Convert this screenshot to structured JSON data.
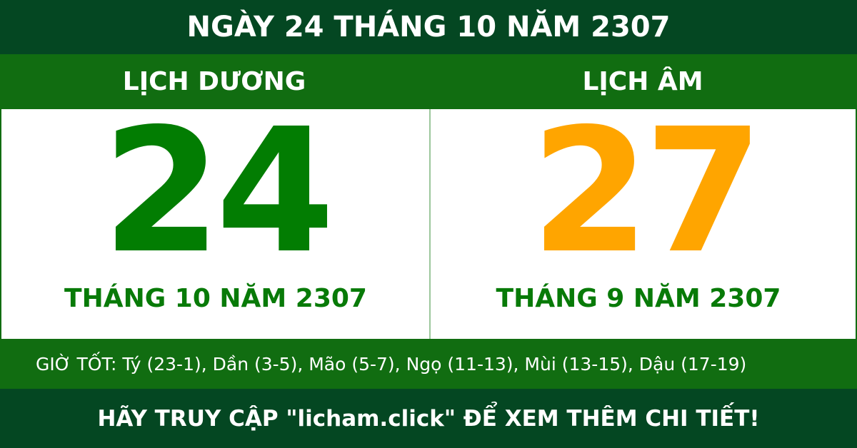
{
  "header": {
    "title": "NGÀY 24 THÁNG 10 NĂM 2307"
  },
  "solar": {
    "label": "LỊCH DƯƠNG",
    "day": "24",
    "month_year": "THÁNG 10 NĂM 2307",
    "color": "#027d02"
  },
  "lunar": {
    "label": "LỊCH ÂM",
    "day": "27",
    "month_year": "THÁNG 9 NĂM 2307",
    "color": "#ffa500"
  },
  "good_hours": "GIỜ TỐT: Tý (23-1), Dần (3-5), Mão (5-7), Ngọ (11-13), Mùi (13-15), Dậu (17-19)",
  "footer": "HÃY TRUY CẬP \"licham.click\" ĐỂ XEM THÊM CHI TIẾT!"
}
